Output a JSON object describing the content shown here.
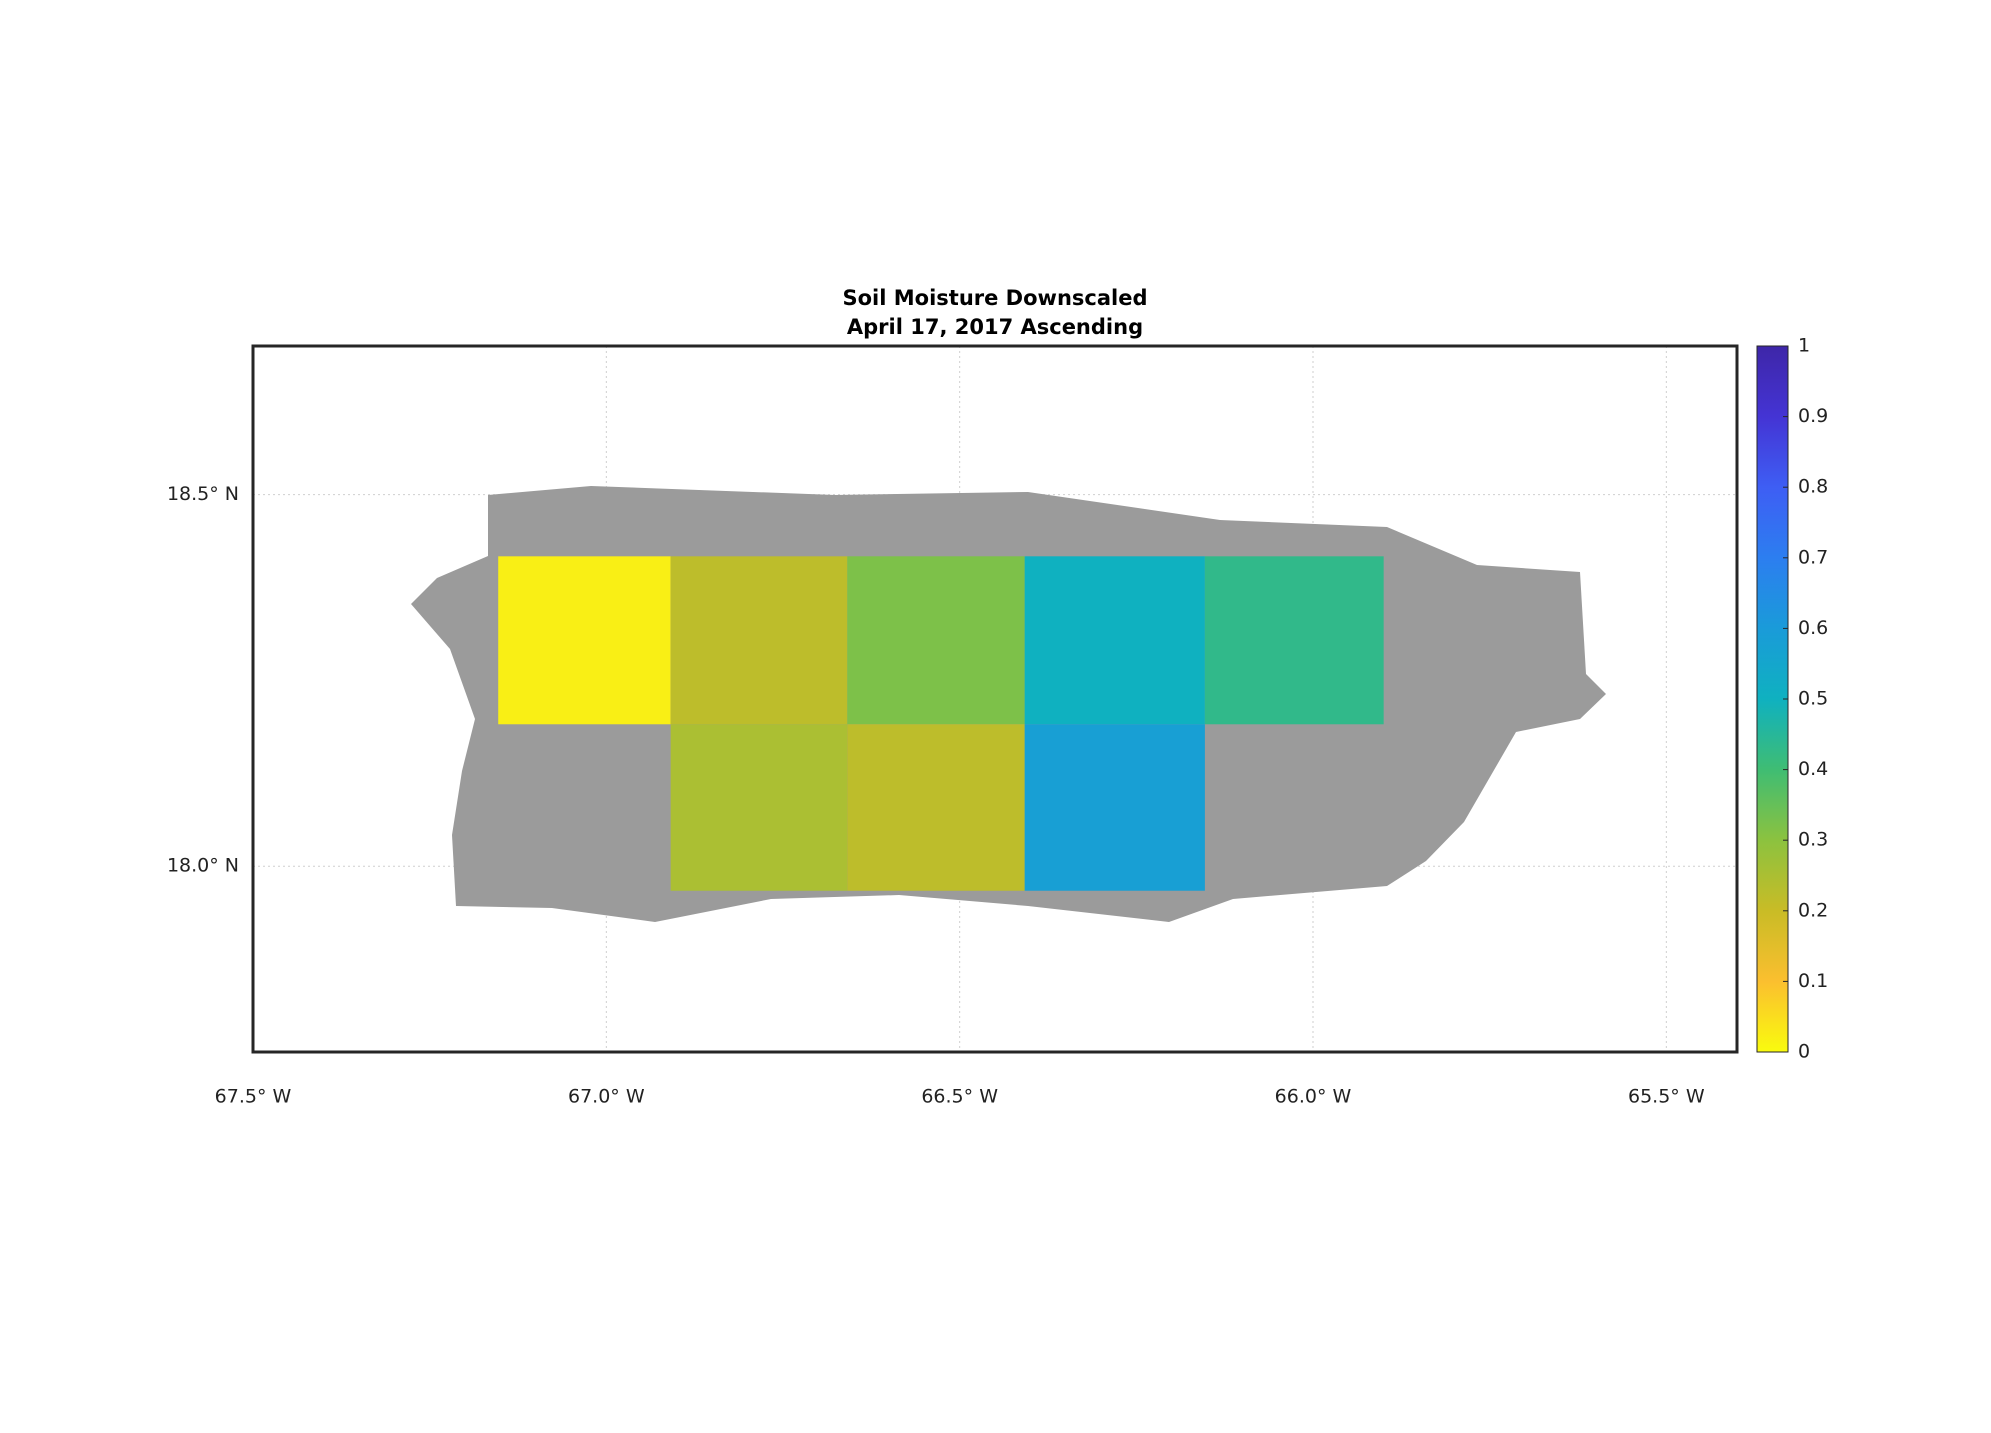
{
  "chart_data": {
    "type": "map",
    "title": "Soil Moisture Downscaled",
    "subtitle": "April 17, 2017 Ascending",
    "xlim": [
      -67.5,
      -65.4
    ],
    "ylim": [
      17.75,
      18.7
    ],
    "xticks": [
      {
        "value": -67.5,
        "label": "67.5° W"
      },
      {
        "value": -67.0,
        "label": "67.0° W"
      },
      {
        "value": -66.5,
        "label": "66.5° W"
      },
      {
        "value": -66.0,
        "label": "66.0° W"
      },
      {
        "value": -65.5,
        "label": "65.5° W"
      }
    ],
    "yticks": [
      {
        "value": 18.0,
        "label": "18.0° N"
      },
      {
        "value": 18.5,
        "label": "18.5° N"
      }
    ],
    "grid": true,
    "land_color": "#9b9b9b",
    "colorbar_lim": [
      0,
      1
    ],
    "colorbar_ticks": [
      0,
      0.1,
      0.2,
      0.3,
      0.4,
      0.5,
      0.6,
      0.7,
      0.8,
      0.9,
      1
    ],
    "colormap": [
      "#f9fb0e",
      "#fbbf2f",
      "#c9bc26",
      "#8cc23f",
      "#3fbd73",
      "#0fb1c0",
      "#1a9bd9",
      "#2c7ef0",
      "#3e5ef4",
      "#4434d4",
      "#3e26a8"
    ],
    "tiles": [
      {
        "lon": [
          -67.153,
          -66.909
        ],
        "lat": [
          18.191,
          18.417
        ],
        "value": 0.02
      },
      {
        "lon": [
          -66.909,
          -66.659
        ],
        "lat": [
          18.191,
          18.417
        ],
        "value": 0.22
      },
      {
        "lon": [
          -66.659,
          -66.408
        ],
        "lat": [
          18.191,
          18.417
        ],
        "value": 0.32
      },
      {
        "lon": [
          -66.408,
          -66.153
        ],
        "lat": [
          18.191,
          18.417
        ],
        "value": 0.5
      },
      {
        "lon": [
          -66.153,
          -65.9
        ],
        "lat": [
          18.191,
          18.417
        ],
        "value": 0.43
      },
      {
        "lon": [
          -66.909,
          -66.659
        ],
        "lat": [
          17.967,
          18.191
        ],
        "value": 0.25
      },
      {
        "lon": [
          -66.659,
          -66.408
        ],
        "lat": [
          17.967,
          18.191
        ],
        "value": 0.22
      },
      {
        "lon": [
          -66.408,
          -66.153
        ],
        "lat": [
          17.967,
          18.191
        ],
        "value": 0.58
      }
    ]
  }
}
